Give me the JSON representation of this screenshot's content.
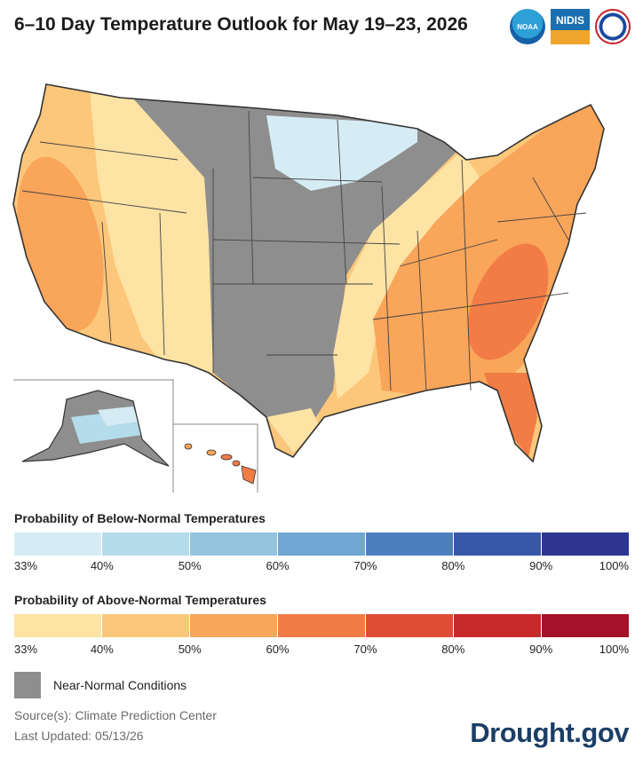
{
  "title": "6–10 Day Temperature Outlook for May 19–23, 2026",
  "logos": {
    "noaa": "NOAA",
    "nidis": "NIDIS",
    "nws": "National Weather Service"
  },
  "legend": {
    "below": {
      "title": "Probability of Below-Normal Temperatures",
      "colors": [
        "#d6ecf5",
        "#b4dcea",
        "#93c5de",
        "#6fa6d2",
        "#4c7fc0",
        "#3957a8",
        "#2e3592"
      ],
      "ticks": [
        "33%",
        "40%",
        "50%",
        "60%",
        "70%",
        "80%",
        "90%",
        "100%"
      ]
    },
    "above": {
      "title": "Probability of Above-Normal Temperatures",
      "colors": [
        "#fde3a4",
        "#fcc77a",
        "#f9a55a",
        "#f27c45",
        "#e04d34",
        "#c82a2a",
        "#a5102a"
      ],
      "ticks": [
        "33%",
        "40%",
        "50%",
        "60%",
        "70%",
        "80%",
        "90%",
        "100%"
      ]
    },
    "near_normal": {
      "label": "Near-Normal Conditions",
      "color": "#8e8e8e"
    }
  },
  "footer": {
    "source": "Source(s): Climate Prediction Center",
    "updated": "Last Updated: 05/13/26",
    "brand": "Drought.gov"
  }
}
